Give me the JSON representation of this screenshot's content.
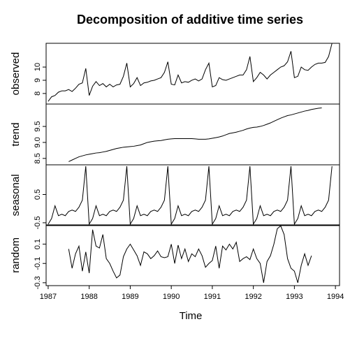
{
  "chart_data": {
    "type": "line",
    "title": "Decomposition of additive time series",
    "xlabel": "Time",
    "xlim": [
      1986.95,
      1994.1
    ],
    "x_ticks": [
      1987,
      1988,
      1989,
      1990,
      1991,
      1992,
      1993,
      1994
    ],
    "x_tick_labels": [
      "1987",
      "1988",
      "1989",
      "1990",
      "1991",
      "1992",
      "1993",
      "1994"
    ],
    "start": 1987.0,
    "frequency": 12,
    "panels": [
      {
        "name": "observed",
        "ylabel": "observed",
        "ylim": [
          7.2,
          11.8
        ],
        "y_ticks": [
          8,
          9,
          10
        ],
        "y_tick_labels": [
          "8",
          "9",
          "10"
        ],
        "series_start": 1987.0,
        "values": [
          7.4,
          7.75,
          7.85,
          8.1,
          8.2,
          8.2,
          8.3,
          8.15,
          8.4,
          8.7,
          8.8,
          9.9,
          7.85,
          8.55,
          8.9,
          8.6,
          8.75,
          8.5,
          8.7,
          8.5,
          8.65,
          8.7,
          9.3,
          10.3,
          8.5,
          8.75,
          9.2,
          8.6,
          8.8,
          8.85,
          8.95,
          9.0,
          9.1,
          9.2,
          9.6,
          10.4,
          8.7,
          8.65,
          9.4,
          8.8,
          8.9,
          8.85,
          9.0,
          9.1,
          8.95,
          9.1,
          9.8,
          10.3,
          8.5,
          8.6,
          9.2,
          9.05,
          9.0,
          9.1,
          9.2,
          9.3,
          9.4,
          9.4,
          9.8,
          10.8,
          8.9,
          9.2,
          9.6,
          9.4,
          9.1,
          9.4,
          9.6,
          9.8,
          10.0,
          10.1,
          10.4,
          11.2,
          9.2,
          9.3,
          10.0,
          9.8,
          9.75,
          10.0,
          10.2,
          10.3,
          10.3,
          10.35,
          10.8,
          11.8
        ]
      },
      {
        "name": "trend",
        "ylabel": "trend",
        "ylim": [
          8.3,
          10.2
        ],
        "y_ticks": [
          8.5,
          9.0,
          9.5
        ],
        "y_tick_labels": [
          "8.5",
          "9.0",
          "9.5"
        ],
        "series_start": 1987.5,
        "values": [
          8.4,
          8.45,
          8.5,
          8.55,
          8.58,
          8.61,
          8.63,
          8.65,
          8.67,
          8.68,
          8.7,
          8.72,
          8.75,
          8.78,
          8.81,
          8.83,
          8.85,
          8.86,
          8.87,
          8.88,
          8.9,
          8.92,
          8.96,
          9.0,
          9.02,
          9.04,
          9.05,
          9.06,
          9.08,
          9.1,
          9.11,
          9.12,
          9.12,
          9.12,
          9.12,
          9.12,
          9.12,
          9.11,
          9.1,
          9.1,
          9.1,
          9.11,
          9.13,
          9.15,
          9.17,
          9.2,
          9.24,
          9.28,
          9.3,
          9.32,
          9.35,
          9.38,
          9.42,
          9.45,
          9.47,
          9.48,
          9.5,
          9.53,
          9.57,
          9.61,
          9.66,
          9.71,
          9.76,
          9.8,
          9.84,
          9.86,
          9.89,
          9.92,
          9.95,
          9.98,
          10.0,
          10.03,
          10.05,
          10.07,
          10.08
        ]
      },
      {
        "name": "seasonal",
        "ylabel": "seasonal",
        "ylim": [
          -0.6,
          1.55
        ],
        "y_ticks": [
          -0.5,
          0.5
        ],
        "y_tick_labels": [
          "-0.5",
          "0.5"
        ],
        "series_start": 1987.0,
        "values": [
          -0.55,
          -0.35,
          0.1,
          -0.25,
          -0.2,
          -0.25,
          -0.1,
          -0.05,
          -0.1,
          0.05,
          0.3,
          1.5,
          -0.55,
          -0.35,
          0.1,
          -0.25,
          -0.2,
          -0.25,
          -0.1,
          -0.05,
          -0.1,
          0.05,
          0.3,
          1.5,
          -0.55,
          -0.35,
          0.1,
          -0.25,
          -0.2,
          -0.25,
          -0.1,
          -0.05,
          -0.1,
          0.05,
          0.3,
          1.5,
          -0.55,
          -0.35,
          0.1,
          -0.25,
          -0.2,
          -0.25,
          -0.1,
          -0.05,
          -0.1,
          0.05,
          0.3,
          1.5,
          -0.55,
          -0.35,
          0.1,
          -0.25,
          -0.2,
          -0.25,
          -0.1,
          -0.05,
          -0.1,
          0.05,
          0.3,
          1.5,
          -0.55,
          -0.35,
          0.1,
          -0.25,
          -0.2,
          -0.25,
          -0.1,
          -0.05,
          -0.1,
          0.05,
          0.3,
          1.5,
          -0.55,
          -0.35,
          0.1,
          -0.25,
          -0.2,
          -0.25,
          -0.1,
          -0.05,
          -0.1,
          0.05,
          0.3,
          1.5
        ]
      },
      {
        "name": "random",
        "ylabel": "random",
        "ylim": [
          -0.33,
          0.3
        ],
        "y_ticks": [
          -0.3,
          -0.1,
          0.1
        ],
        "y_tick_labels": [
          "-0.3",
          "-0.1",
          "0.1"
        ],
        "series_start": 1987.5,
        "values": [
          0.05,
          -0.15,
          0.0,
          0.08,
          -0.18,
          0.02,
          -0.2,
          0.25,
          0.08,
          0.06,
          0.2,
          -0.05,
          -0.1,
          -0.18,
          -0.25,
          -0.22,
          -0.03,
          0.05,
          0.1,
          0.04,
          -0.02,
          -0.12,
          0.02,
          0.0,
          -0.05,
          -0.02,
          0.03,
          -0.03,
          -0.04,
          -0.03,
          0.1,
          -0.1,
          0.09,
          -0.05,
          0.05,
          -0.08,
          0.0,
          -0.03,
          0.05,
          -0.02,
          -0.14,
          -0.1,
          -0.07,
          0.08,
          -0.15,
          0.08,
          0.04,
          0.1,
          0.05,
          0.12,
          -0.08,
          -0.05,
          -0.03,
          -0.06,
          0.05,
          -0.05,
          -0.1,
          -0.3,
          -0.08,
          -0.02,
          0.1,
          0.26,
          0.29,
          0.2,
          -0.05,
          -0.15,
          -0.18,
          -0.3,
          -0.12,
          0.0,
          -0.12,
          -0.02
        ]
      }
    ],
    "grid": false,
    "line_color": "#000000"
  }
}
